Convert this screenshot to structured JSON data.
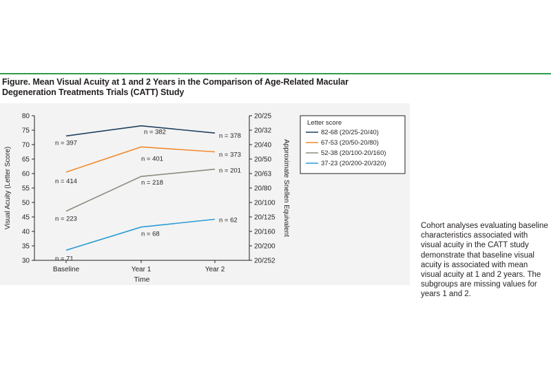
{
  "figure": {
    "title": "Figure. Mean Visual Acuity at 1 and 2 Years in the Comparison of Age-Related Macular Degeneration Treatments Trials (CATT) Study",
    "caption": "Cohort analyses evaluating baseline characteristics associated with visual acuity in the CATT study demonstrate that baseline visual acuity is associated with mean visual acuity at 1 and 2 years. The subgroups are missing values for years 1 and 2."
  },
  "chart_data": {
    "type": "line",
    "categories": [
      "Baseline",
      "Year 1",
      "Year 2"
    ],
    "xlabel": "Time",
    "ylabel": "Visual Acuity (Letter Score)",
    "ylabel_right": "Approximate Snellen Equivalent",
    "ylim": [
      30,
      80
    ],
    "yticks": [
      30,
      35,
      40,
      45,
      50,
      55,
      60,
      65,
      70,
      75,
      80
    ],
    "yticks_right": [
      "20/25",
      "20/32",
      "20/40",
      "20/50",
      "20/63",
      "20/80",
      "20/100",
      "20/125",
      "20/160",
      "20/200",
      "20/252"
    ],
    "legend_title": "Letter score",
    "legend_position": "top-right",
    "grid": false,
    "series": [
      {
        "name": "82-68 (20/25-20/40)",
        "color": "#1f3f5f",
        "values": [
          73,
          76.5,
          74
        ],
        "n": [
          "n = 397",
          "n = 382",
          "n = 378"
        ]
      },
      {
        "name": "67-53 (20/50-20/80)",
        "color": "#f08a2c",
        "values": [
          60.5,
          69.2,
          67.5
        ],
        "n": [
          "n = 414",
          "n = 401",
          "n = 373"
        ]
      },
      {
        "name": "52-38 (20/100-20/160)",
        "color": "#8d8a7e",
        "values": [
          47,
          59,
          61.5
        ],
        "n": [
          "n = 223",
          "n = 218",
          "n = 201"
        ]
      },
      {
        "name": "37-23 (20/200-20/320)",
        "color": "#2a9bd6",
        "values": [
          33.5,
          41.5,
          44.2
        ],
        "n": [
          "n = 71",
          "n = 68",
          "n = 62"
        ]
      }
    ]
  }
}
